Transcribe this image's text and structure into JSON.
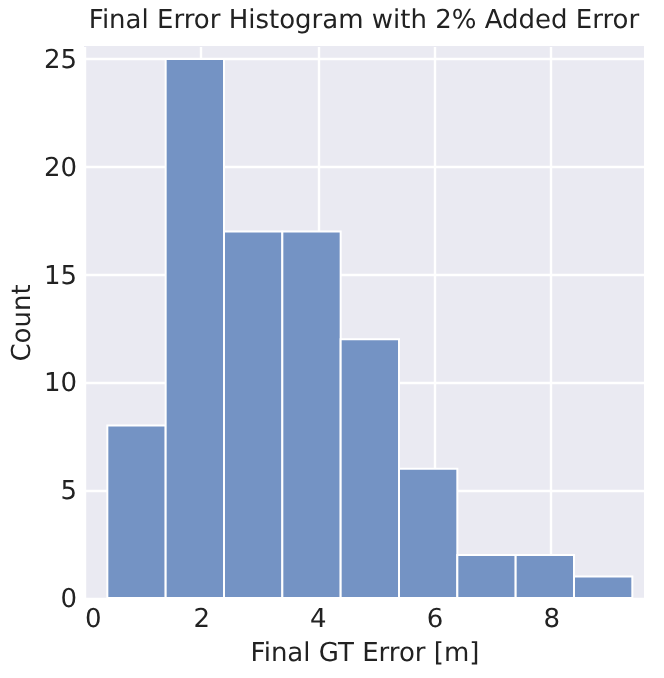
{
  "chart_data": {
    "type": "histogram",
    "title": "Final Error Histogram with 2% Added Error",
    "xlabel": "Final GT Error [m]",
    "ylabel": "Count",
    "bins": [
      0.4,
      1.4,
      2.4,
      3.4,
      4.4,
      5.4,
      6.4,
      7.4,
      8.4,
      9.4
    ],
    "values": [
      8,
      25,
      17,
      17,
      12,
      6,
      2,
      2,
      1
    ],
    "color": "#7493c4",
    "xlim": [
      0,
      9.6
    ],
    "xticks": [
      0,
      2,
      4,
      6,
      8
    ],
    "ylim": [
      0,
      25.6
    ],
    "yticks": [
      0,
      5,
      10,
      15,
      20,
      25
    ],
    "grid": true
  }
}
